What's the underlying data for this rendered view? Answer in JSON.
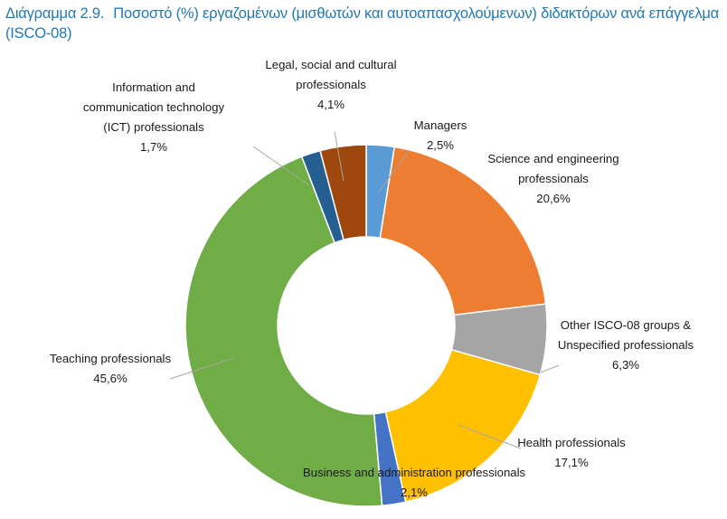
{
  "title": {
    "number": "Διάγραμμα 2.9.",
    "text": "Ποσοστό (%) εργαζομένων (μισθωτών και αυτοαπασχολούμενων) διδακτόρων ανά επάγγελμα (ISCO-08)"
  },
  "chart_data": {
    "type": "pie",
    "subtype": "donut",
    "title": "Ποσοστό (%) εργαζομένων (μισθωτών και αυτοαπασχολούμενων) διδακτόρων ανά επάγγελμα (ISCO-08)",
    "start": "top, clockwise",
    "slices": [
      {
        "label_lines": [
          "Managers"
        ],
        "value": 2.5,
        "value_label": "2,5%",
        "color": "#5b9bd5"
      },
      {
        "label_lines": [
          "Science and engineering",
          "professionals"
        ],
        "value": 20.6,
        "value_label": "20,6%",
        "color": "#ed7d31"
      },
      {
        "label_lines": [
          "Other ISCO-08 groups &",
          "Unspecified professionals"
        ],
        "value": 6.3,
        "value_label": "6,3%",
        "color": "#a5a5a5"
      },
      {
        "label_lines": [
          "Health professionals"
        ],
        "value": 17.1,
        "value_label": "17,1%",
        "color": "#ffc000"
      },
      {
        "label_lines": [
          "Business and administration professionals"
        ],
        "value": 2.1,
        "value_label": "2,1%",
        "color": "#4472c4"
      },
      {
        "label_lines": [
          "Teaching professionals"
        ],
        "value": 45.6,
        "value_label": "45,6%",
        "color": "#70ad47"
      },
      {
        "label_lines": [
          "Information and",
          "communication technology",
          "(ICT) professionals"
        ],
        "value": 1.7,
        "value_label": "1,7%",
        "color": "#255e91"
      },
      {
        "label_lines": [
          "Legal, social and cultural",
          "professionals"
        ],
        "value": 4.1,
        "value_label": "4,1%",
        "color": "#9e480e"
      }
    ]
  }
}
